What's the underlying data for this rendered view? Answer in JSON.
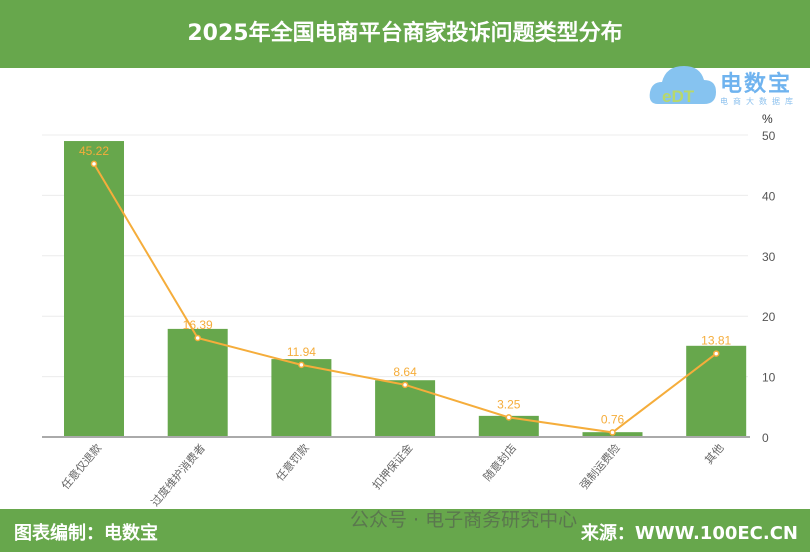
{
  "header": {
    "title": "2025年全国电商平台商家投诉问题类型分布"
  },
  "logo": {
    "text": "电数宝",
    "subtitle": "电商大数据库",
    "mark": "eDT"
  },
  "footer": {
    "credit": "图表编制：电数宝",
    "source": "来源：WWW.100EC.CN",
    "watermark": "公众号 · 电子商务研究中心"
  },
  "colors": {
    "bar": "#67a74c",
    "line": "#f5ad3b",
    "header": "#67a74c"
  },
  "chart_data": {
    "type": "bar+line",
    "categories": [
      "任意仅退款",
      "过度维护消费者",
      "任意罚款",
      "扣押保证金",
      "随意封店",
      "强制运费险",
      "其他"
    ],
    "series": [
      {
        "type": "bar",
        "values": [
          49.0,
          17.9,
          12.9,
          9.4,
          3.5,
          0.8,
          15.1
        ]
      },
      {
        "type": "line",
        "values": [
          45.22,
          16.39,
          11.94,
          8.64,
          3.25,
          0.76,
          13.81
        ],
        "labels": [
          "45.22",
          "16.39",
          "11.94",
          "8.64",
          "3.25",
          "0.76",
          "13.81"
        ]
      }
    ],
    "y_axis": {
      "unit": "%",
      "ylim": [
        0,
        50
      ],
      "ticks": [
        "0",
        "10",
        "20",
        "30",
        "40",
        "50"
      ],
      "position": "right"
    },
    "grid": true
  }
}
